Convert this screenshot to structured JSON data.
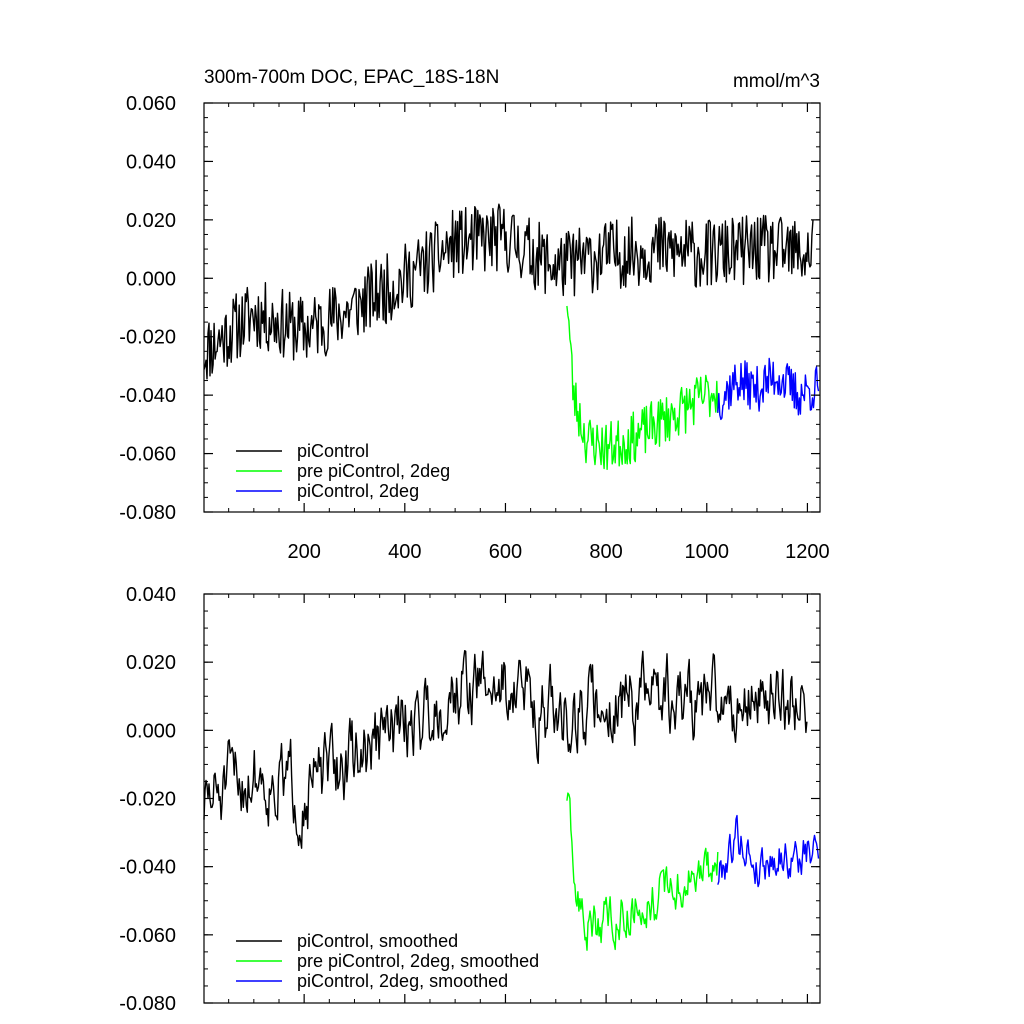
{
  "chart_data": [
    {
      "type": "line",
      "title": "300m-700m DOC, EPAC_18S-18N",
      "units": "mmol/m^3",
      "xlim": [
        1,
        1225
      ],
      "ylim": [
        -0.08,
        0.06
      ],
      "yticks": [
        -0.08,
        -0.06,
        -0.04,
        -0.02,
        0.0,
        0.02,
        0.04,
        0.06
      ],
      "ytick_labels": [
        "-0.080",
        "-0.060",
        "-0.040",
        "-0.020",
        "0.000",
        "0.020",
        "0.040",
        "0.060"
      ],
      "xticks": [
        200,
        400,
        600,
        800,
        1000,
        1200
      ],
      "xtick_labels": [
        "200",
        "400",
        "600",
        "800",
        "1000",
        "1200"
      ],
      "legend_position": "bottom-left",
      "series": [
        {
          "name": "piControl",
          "color": "#000000",
          "x": [
            1,
            100,
            200,
            300,
            400,
            500,
            600,
            700,
            800,
            900,
            1000,
            1100,
            1200,
            1212
          ],
          "values": [
            -0.025,
            -0.012,
            -0.018,
            -0.01,
            0.0,
            0.012,
            0.014,
            0.004,
            0.008,
            0.01,
            0.008,
            0.01,
            0.008,
            0.012
          ],
          "noise": 0.0075,
          "seed": 11
        },
        {
          "name": "pre piControl, 2deg",
          "color": "#00ff00",
          "x": [
            722,
            735,
            760,
            800,
            850,
            900,
            950,
            1000,
            1022
          ],
          "values": [
            -0.005,
            -0.04,
            -0.055,
            -0.058,
            -0.055,
            -0.05,
            -0.045,
            -0.04,
            -0.038
          ],
          "noise": 0.0055,
          "seed": 23
        },
        {
          "name": "piControl, 2deg",
          "color": "#0000ff",
          "x": [
            1022,
            1060,
            1100,
            1140,
            1180,
            1222
          ],
          "values": [
            -0.042,
            -0.035,
            -0.038,
            -0.033,
            -0.04,
            -0.037
          ],
          "noise": 0.005,
          "seed": 37
        }
      ]
    },
    {
      "type": "line",
      "xlim": [
        1,
        1225
      ],
      "ylim": [
        -0.08,
        0.04
      ],
      "yticks": [
        -0.08,
        -0.06,
        -0.04,
        -0.02,
        0.0,
        0.02,
        0.04
      ],
      "ytick_labels": [
        "-0.080",
        "-0.060",
        "-0.040",
        "-0.020",
        "0.000",
        "0.020",
        "0.040"
      ],
      "xticks": [
        200,
        400,
        600,
        800,
        1000,
        1200
      ],
      "xtick_labels": [],
      "legend_position": "bottom-left",
      "series": [
        {
          "name": "piControl, smoothed",
          "color": "#000000",
          "x": [
            1,
            100,
            200,
            300,
            400,
            500,
            600,
            700,
            800,
            900,
            1000,
            1100,
            1200,
            1200
          ],
          "values": [
            -0.022,
            -0.012,
            -0.018,
            -0.008,
            0.002,
            0.012,
            0.014,
            0.004,
            0.008,
            0.01,
            0.008,
            0.01,
            0.01,
            0.009
          ],
          "noise": 0.007,
          "seed": 51
        },
        {
          "name": "pre piControl, 2deg, smoothed",
          "color": "#00ff00",
          "x": [
            722,
            735,
            760,
            800,
            850,
            900,
            950,
            1000,
            1022
          ],
          "values": [
            -0.018,
            -0.045,
            -0.058,
            -0.055,
            -0.052,
            -0.048,
            -0.045,
            -0.042,
            -0.038
          ],
          "noise": 0.0045,
          "seed": 63
        },
        {
          "name": "piControl, 2deg, smoothed",
          "color": "#0000ff",
          "x": [
            1022,
            1060,
            1100,
            1140,
            1180,
            1222
          ],
          "values": [
            -0.043,
            -0.03,
            -0.04,
            -0.036,
            -0.038,
            -0.035
          ],
          "noise": 0.004,
          "seed": 79
        }
      ]
    }
  ]
}
